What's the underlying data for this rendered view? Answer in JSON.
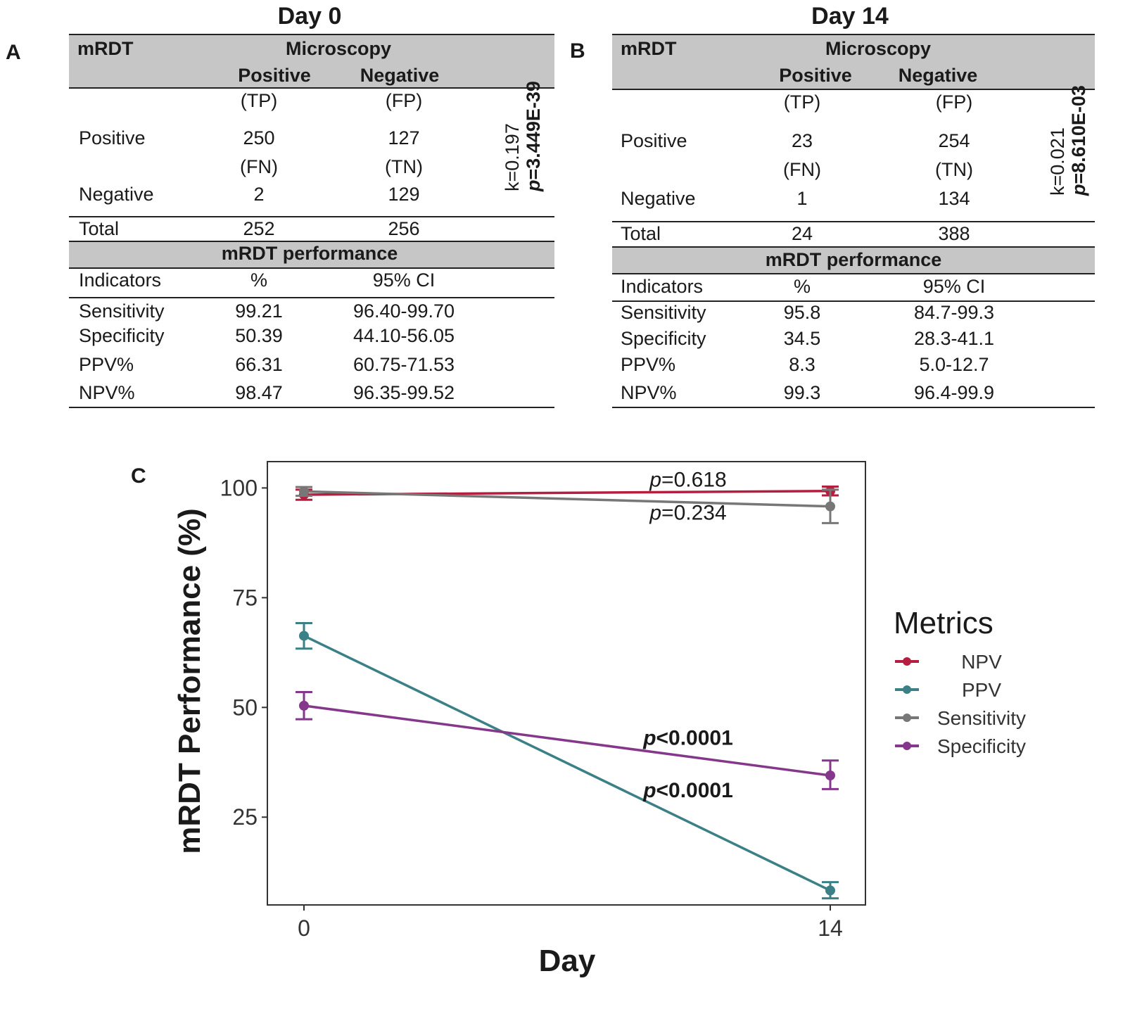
{
  "panel_labels": {
    "a": "A",
    "b": "B",
    "c": "C"
  },
  "tables": {
    "day0": {
      "title": "Day 0",
      "mrdt": "mRDT",
      "microscopy": "Microscopy",
      "positive_col": "Positive",
      "negative_col": "Negative",
      "tp": "(TP)",
      "fp": "(FP)",
      "fn": "(FN)",
      "tn": "(TN)",
      "row_positive": "Positive",
      "row_negative": "Negative",
      "row_total": "Total",
      "tp_val": "250",
      "fp_val": "127",
      "fn_val": "2",
      "tn_val": "129",
      "total_pos": "252",
      "total_neg": "256",
      "kappa": "k=0.197",
      "p_prefix": "p",
      "p_value": "=3.449E-39",
      "perf_header": "mRDT performance",
      "indicators": "Indicators",
      "pct": "%",
      "ci": "95% CI",
      "rows": [
        {
          "name": "Sensitivity",
          "pct": "99.21",
          "ci": "96.40-99.70"
        },
        {
          "name": "Specificity",
          "pct": "50.39",
          "ci": "44.10-56.05"
        },
        {
          "name": "PPV%",
          "pct": "66.31",
          "ci": "60.75-71.53"
        },
        {
          "name": "NPV%",
          "pct": "98.47",
          "ci": "96.35-99.52"
        }
      ]
    },
    "day14": {
      "title": "Day 14",
      "mrdt": "mRDT",
      "microscopy": "Microscopy",
      "positive_col": "Positive",
      "negative_col": "Negative",
      "tp": "(TP)",
      "fp": "(FP)",
      "fn": "(FN)",
      "tn": "(TN)",
      "row_positive": "Positive",
      "row_negative": "Negative",
      "row_total": "Total",
      "tp_val": "23",
      "fp_val": "254",
      "fn_val": "1",
      "tn_val": "134",
      "total_pos": "24",
      "total_neg": "388",
      "kappa": "k=0.021",
      "p_prefix": "p",
      "p_value": "=8.610E-03",
      "perf_header": "mRDT performance",
      "indicators": "Indicators",
      "pct": "%",
      "ci": "95% CI",
      "rows": [
        {
          "name": "Sensitivity",
          "pct": "95.8",
          "ci": "84.7-99.3"
        },
        {
          "name": "Specificity",
          "pct": "34.5",
          "ci": "28.3-41.1"
        },
        {
          "name": "PPV%",
          "pct": "8.3",
          "ci": "5.0-12.7"
        },
        {
          "name": "NPV%",
          "pct": "99.3",
          "ci": "96.4-99.9"
        }
      ]
    }
  },
  "chart_data": {
    "type": "line",
    "xlabel": "Day",
    "ylabel": "mRDT Performance (%)",
    "x": [
      0,
      14
    ],
    "x_ticks": [
      "0",
      "14"
    ],
    "ylim": [
      5,
      106
    ],
    "y_ticks": [
      25,
      50,
      75,
      100
    ],
    "legend_title": "Metrics",
    "legend_position": "right",
    "series": [
      {
        "name": "NPV",
        "color": "#b51e3f",
        "values": [
          98.47,
          99.3
        ],
        "err_low": [
          97.3,
          98.3
        ],
        "err_high": [
          99.6,
          100.3
        ]
      },
      {
        "name": "PPV",
        "color": "#3b8087",
        "values": [
          66.31,
          8.3
        ],
        "err_low": [
          63.4,
          6.5
        ],
        "err_high": [
          69.2,
          10.2
        ]
      },
      {
        "name": "Sensitivity",
        "color": "#777777",
        "values": [
          99.21,
          95.8
        ],
        "err_low": [
          98.2,
          92.0
        ],
        "err_high": [
          100.2,
          99.6
        ]
      },
      {
        "name": "Specificity",
        "color": "#85378b",
        "values": [
          50.39,
          34.5
        ],
        "err_low": [
          47.3,
          31.4
        ],
        "err_high": [
          53.5,
          37.9
        ]
      }
    ],
    "annotations": [
      {
        "series": "NPV",
        "prefix": "p",
        "text": "=0.618",
        "bold": false,
        "y": 100.3
      },
      {
        "series": "Sensitivity",
        "prefix": "p",
        "text": "=0.234",
        "bold": false,
        "y": 92.8
      },
      {
        "series": "Specificity",
        "prefix": "p",
        "text": "<0.0001",
        "bold": true,
        "y": 41.5
      },
      {
        "series": "PPV",
        "prefix": "p",
        "text": "<0.0001",
        "bold": true,
        "y": 29.5
      }
    ]
  }
}
